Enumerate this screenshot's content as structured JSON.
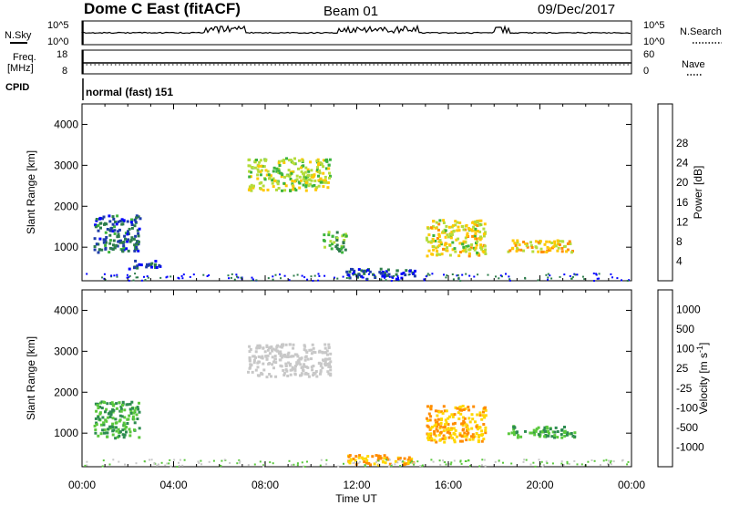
{
  "header": {
    "station": "Dome C East (fitACF)",
    "beam": "Beam 01",
    "date": "09/Dec/2017"
  },
  "top_panels": {
    "nsky_label": "N.Sky",
    "nsky_ticks": [
      "10^5",
      "10^0"
    ],
    "nsearch_label": "N.Search",
    "nsearch_ticks": [
      "10^5",
      "10^0"
    ],
    "freq_label_1": "Freq.",
    "freq_label_2": "[MHz]",
    "freq_ticks": [
      "18",
      "8"
    ],
    "nave_label": "Nave",
    "nave_ticks": [
      "60",
      "0"
    ],
    "cpid_label": "CPID",
    "cpid_text": "normal (fast) 151"
  },
  "chart_data": [
    {
      "type": "heatmap",
      "title": "",
      "xlabel": "",
      "ylabel": "Slant Range [km]",
      "xlim": [
        0,
        24
      ],
      "ylim": [
        180,
        4500
      ],
      "x_ticks": [],
      "y_ticks": [
        "1000",
        "2000",
        "3000",
        "4000"
      ],
      "colorbar": {
        "label": "Power [dB]",
        "ticks": [
          "4",
          "8",
          "12",
          "16",
          "20",
          "24",
          "28"
        ],
        "colors": [
          "#0000ff",
          "#1e3caa",
          "#2d7d4b",
          "#3cb43c",
          "#b4dc3c",
          "#ffc800",
          "#ff8c00",
          "#ff5000",
          "#ff0000"
        ]
      },
      "regions": [
        {
          "t0": 0.5,
          "t1": 2.5,
          "r0": 900,
          "r1": 1800,
          "value": 8
        },
        {
          "t0": 2.0,
          "t1": 3.4,
          "r0": 500,
          "r1": 700,
          "value": 6
        },
        {
          "t0": 7.2,
          "t1": 10.8,
          "r0": 2400,
          "r1": 3200,
          "value": 18
        },
        {
          "t0": 10.5,
          "t1": 11.5,
          "r0": 900,
          "r1": 1400,
          "value": 14
        },
        {
          "t0": 15.0,
          "t1": 17.6,
          "r0": 800,
          "r1": 1700,
          "value": 20
        },
        {
          "t0": 18.5,
          "t1": 21.5,
          "r0": 900,
          "r1": 1200,
          "value": 22
        },
        {
          "t0": 11.5,
          "t1": 14.5,
          "r0": 250,
          "r1": 500,
          "value": 6
        }
      ]
    },
    {
      "type": "heatmap",
      "title": "",
      "xlabel": "Time UT",
      "ylabel": "Slant Range [km]",
      "xlim": [
        0,
        24
      ],
      "ylim": [
        180,
        4500
      ],
      "x_ticks": [
        "00:00",
        "04:00",
        "08:00",
        "12:00",
        "16:00",
        "20:00",
        "00:00"
      ],
      "y_ticks": [
        "1000",
        "2000",
        "3000",
        "4000"
      ],
      "colorbar": {
        "label": "Velocity [m s^-1]",
        "ticks": [
          "1000",
          "500",
          "100",
          "25",
          "-25",
          "-100",
          "-500",
          "-1000"
        ],
        "colors": [
          "#1e32c8",
          "#2d64a0",
          "#2d8c50",
          "#5ac83c",
          "#c8c8c8",
          "#ffd700",
          "#ff8c00",
          "#ff5000",
          "#ff0000"
        ]
      },
      "regions": [
        {
          "t0": 0.5,
          "t1": 2.5,
          "r0": 900,
          "r1": 1800,
          "value": 100
        },
        {
          "t0": 7.2,
          "t1": 10.8,
          "r0": 2400,
          "r1": 3200,
          "value": 0
        },
        {
          "t0": 15.0,
          "t1": 17.6,
          "r0": 800,
          "r1": 1700,
          "value": -100
        },
        {
          "t0": 18.5,
          "t1": 21.5,
          "r0": 900,
          "r1": 1200,
          "value": 100
        },
        {
          "t0": 11.5,
          "t1": 14.5,
          "r0": 250,
          "r1": 500,
          "value": -100
        }
      ]
    }
  ]
}
